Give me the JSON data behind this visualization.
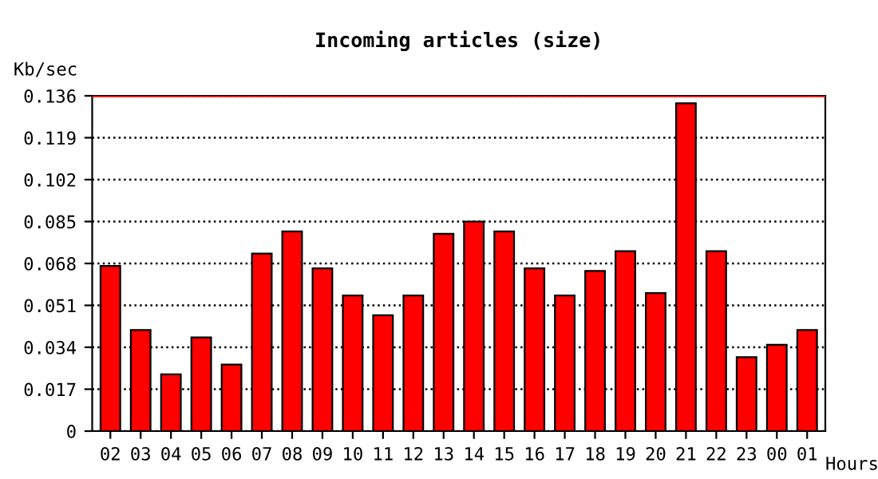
{
  "chart_data": {
    "type": "bar",
    "title": "Incoming articles (size)",
    "ylabel": "Kb/sec",
    "xlabel": "Hours",
    "categories": [
      "02",
      "03",
      "04",
      "05",
      "06",
      "07",
      "08",
      "09",
      "10",
      "11",
      "12",
      "13",
      "14",
      "15",
      "16",
      "17",
      "18",
      "19",
      "20",
      "21",
      "22",
      "23",
      "00",
      "01"
    ],
    "values": [
      0.067,
      0.041,
      0.023,
      0.038,
      0.027,
      0.072,
      0.081,
      0.066,
      0.055,
      0.047,
      0.055,
      0.08,
      0.085,
      0.081,
      0.066,
      0.055,
      0.065,
      0.073,
      0.056,
      0.133,
      0.073,
      0.03,
      0.035,
      0.041
    ],
    "color": "#ff0000",
    "ylim": [
      0,
      0.136
    ],
    "yticks": [
      0,
      0.017,
      0.034,
      0.051,
      0.068,
      0.085,
      0.102,
      0.119,
      0.136
    ],
    "grid": "y",
    "line_style": "dotted",
    "ref_lines": [
      {
        "axis": "y",
        "value": 0.136,
        "color": "#ff0000"
      }
    ]
  }
}
